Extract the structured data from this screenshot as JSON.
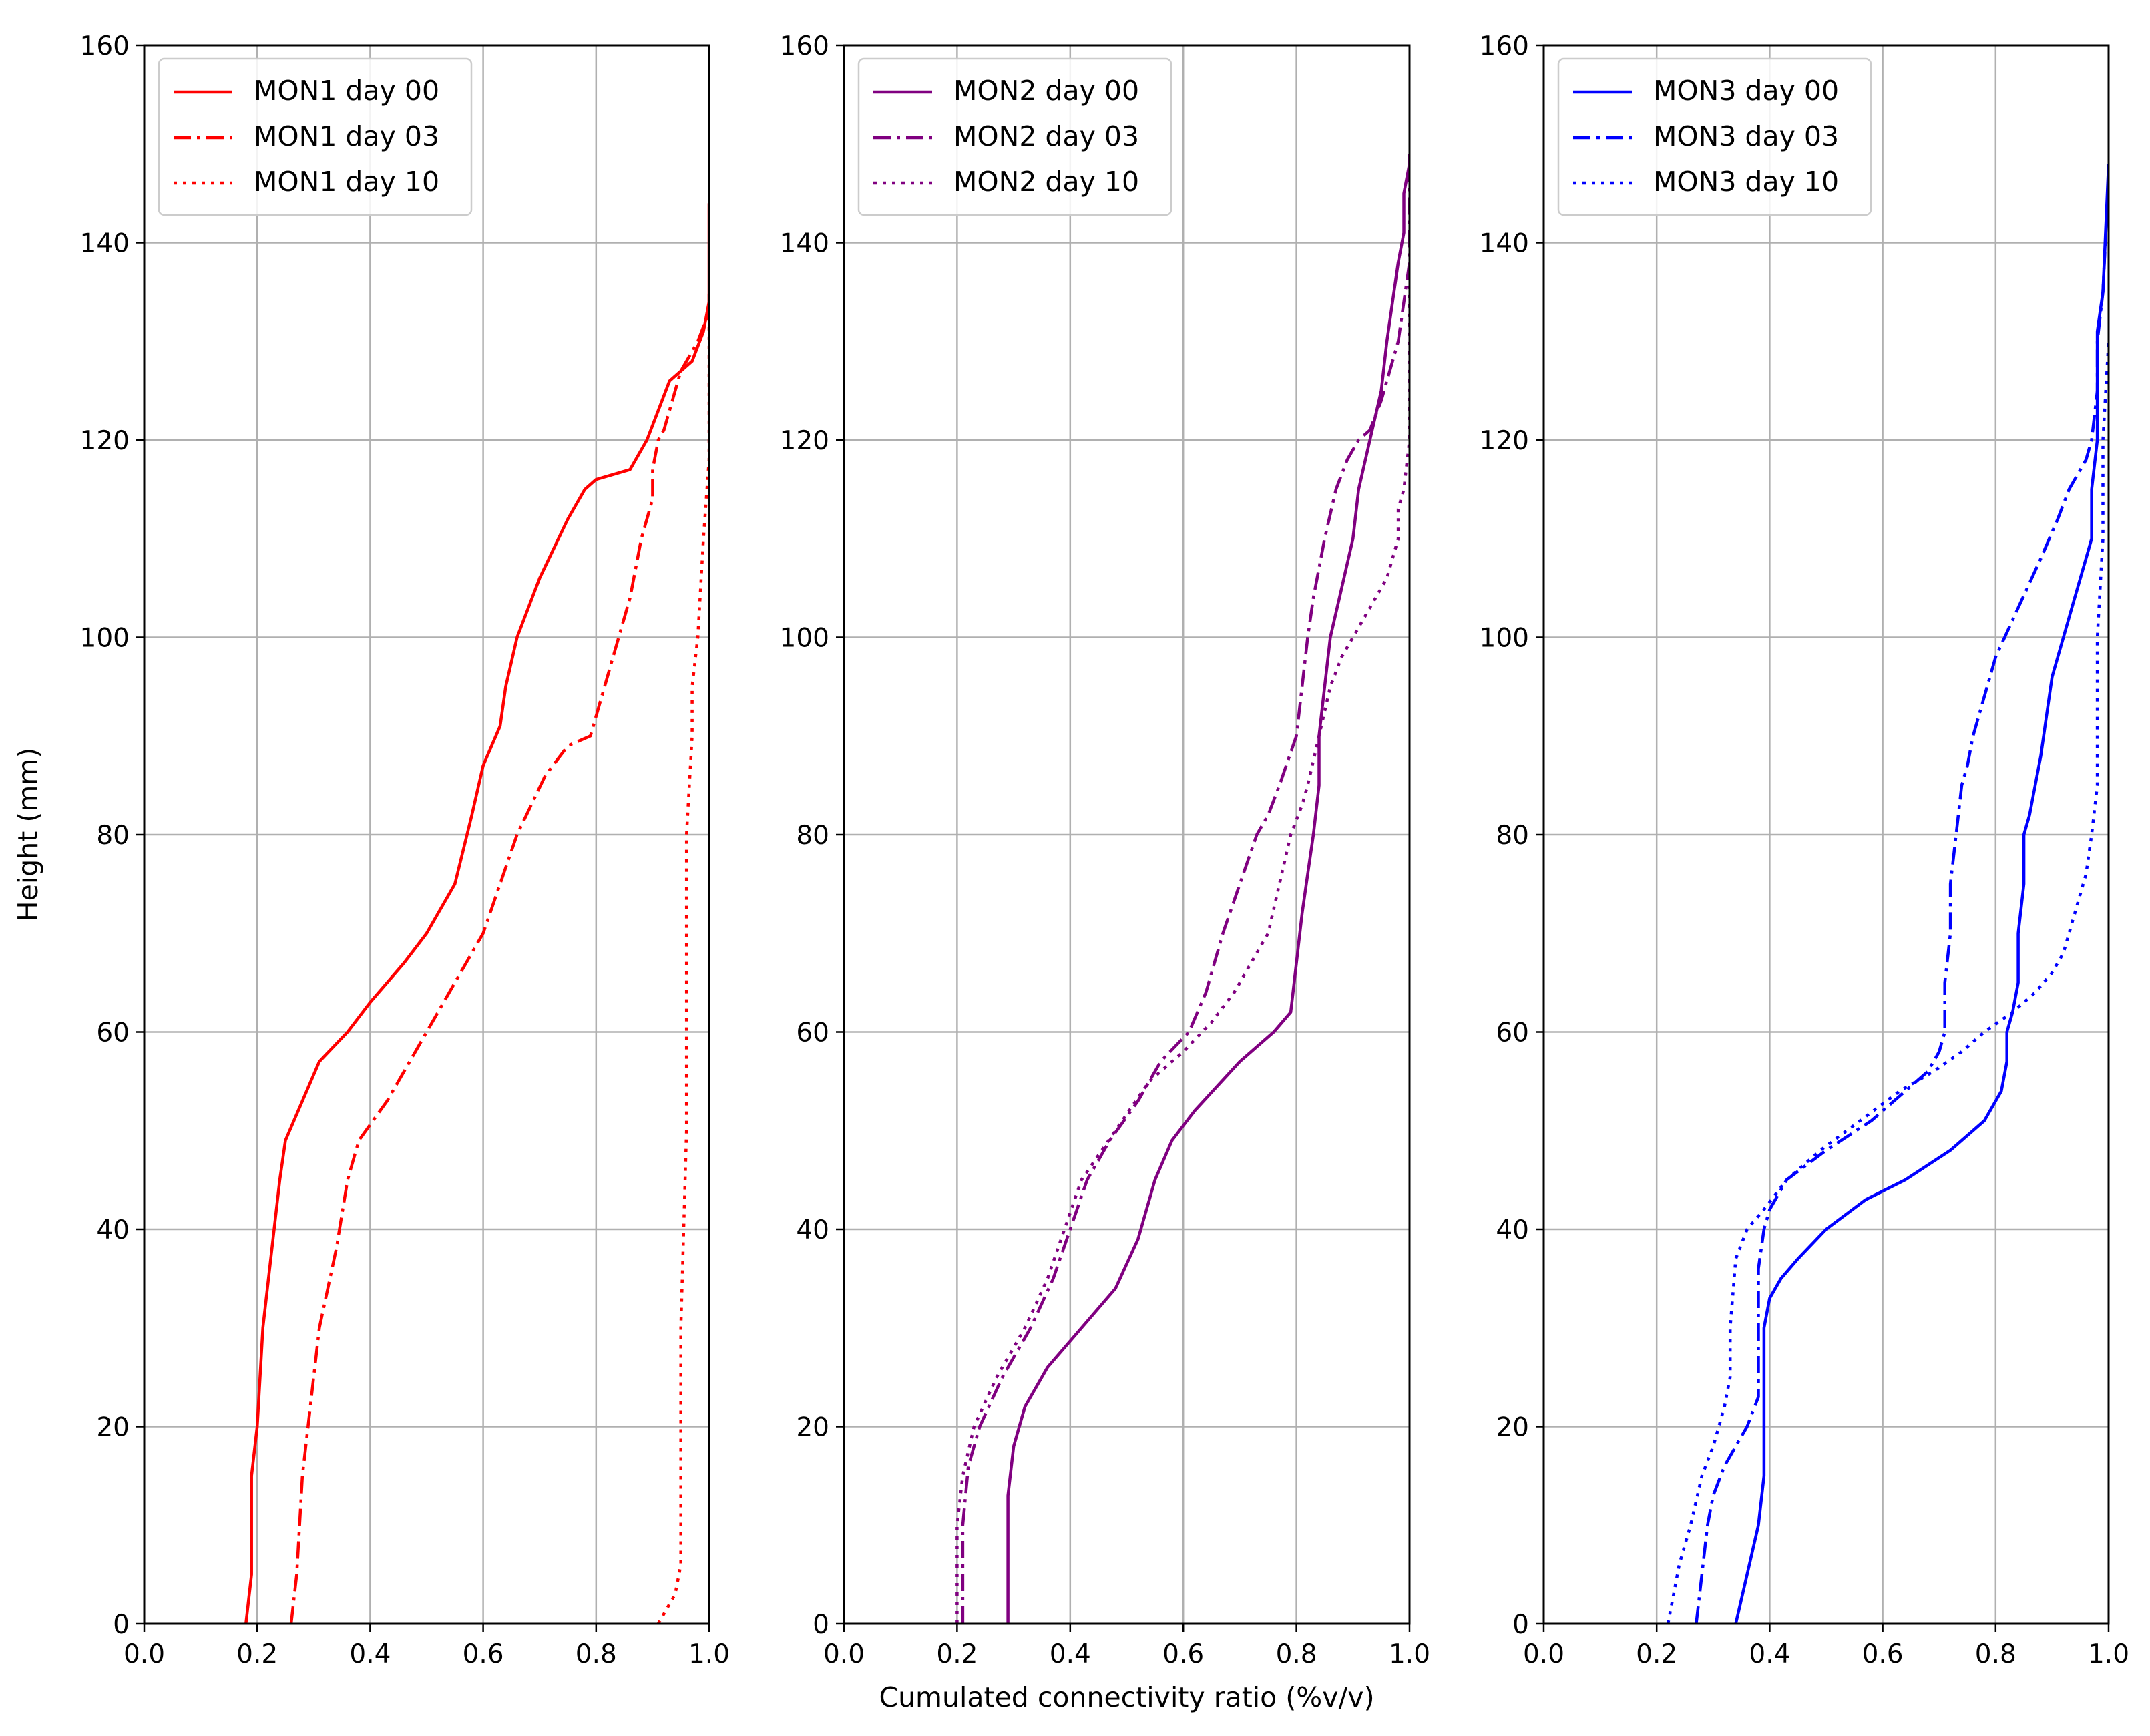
{
  "chart_data": [
    {
      "type": "line",
      "panel": "MON1",
      "xlabel": "",
      "ylabel": "Height (mm)",
      "xlim": [
        0.0,
        1.0
      ],
      "ylim": [
        0,
        160
      ],
      "xticks": [
        "0.0",
        "0.2",
        "0.4",
        "0.6",
        "0.8",
        "1.0"
      ],
      "yticks": [
        "0",
        "20",
        "40",
        "60",
        "80",
        "100",
        "120",
        "140",
        "160"
      ],
      "grid": true,
      "legend_position": "top-left",
      "color": "#ff0000",
      "series": [
        {
          "name": "MON1 day 00",
          "linestyle": "solid",
          "x": [
            0.18,
            0.19,
            0.19,
            0.2,
            0.21,
            0.22,
            0.24,
            0.25,
            0.28,
            0.31,
            0.36,
            0.4,
            0.46,
            0.5,
            0.55,
            0.58,
            0.6,
            0.63,
            0.64,
            0.66,
            0.7,
            0.75,
            0.78,
            0.8,
            0.86,
            0.89,
            0.91,
            0.93,
            0.97,
            0.99,
            1.0,
            1.0
          ],
          "y": [
            0,
            5,
            15,
            20,
            30,
            35,
            45,
            49,
            53,
            57,
            60,
            63,
            67,
            70,
            75,
            82,
            87,
            91,
            95,
            100,
            106,
            112,
            115,
            116,
            117,
            120,
            123,
            126,
            128,
            131,
            134,
            144
          ]
        },
        {
          "name": "MON1 day 03",
          "linestyle": "dashdot",
          "x": [
            0.26,
            0.27,
            0.28,
            0.3,
            0.31,
            0.34,
            0.36,
            0.38,
            0.43,
            0.5,
            0.55,
            0.6,
            0.66,
            0.71,
            0.75,
            0.79,
            0.82,
            0.84,
            0.86,
            0.88,
            0.9,
            0.9,
            0.91,
            0.92,
            0.95,
            0.98,
            1.0,
            1.0
          ],
          "y": [
            0,
            5,
            15,
            25,
            30,
            38,
            45,
            49,
            53,
            60,
            65,
            70,
            80,
            86,
            89,
            90,
            96,
            100,
            104,
            110,
            114,
            117,
            120,
            121,
            127,
            130,
            133,
            135
          ]
        },
        {
          "name": "MON1 day 10",
          "linestyle": "dotted",
          "x": [
            0.91,
            0.94,
            0.95,
            0.95,
            0.95,
            0.96,
            0.96,
            0.96,
            0.97,
            0.97,
            0.98,
            0.99,
            1.0,
            1.0
          ],
          "y": [
            0,
            3,
            6,
            10,
            30,
            50,
            70,
            80,
            90,
            95,
            100,
            110,
            118,
            133
          ]
        }
      ]
    },
    {
      "type": "line",
      "panel": "MON2",
      "xlabel": "Cumulated connectivity ratio  (%v/v)",
      "ylabel": "",
      "xlim": [
        0.0,
        1.0
      ],
      "ylim": [
        0,
        160
      ],
      "xticks": [
        "0.0",
        "0.2",
        "0.4",
        "0.6",
        "0.8",
        "1.0"
      ],
      "yticks": [
        "0",
        "20",
        "40",
        "60",
        "80",
        "100",
        "120",
        "140",
        "160"
      ],
      "grid": true,
      "legend_position": "top-left",
      "color": "#800080",
      "series": [
        {
          "name": "MON2 day 00",
          "linestyle": "solid",
          "x": [
            0.29,
            0.29,
            0.29,
            0.3,
            0.32,
            0.36,
            0.42,
            0.48,
            0.52,
            0.55,
            0.58,
            0.62,
            0.7,
            0.76,
            0.79,
            0.8,
            0.81,
            0.82,
            0.83,
            0.84,
            0.84,
            0.85,
            0.86,
            0.88,
            0.9,
            0.91,
            0.93,
            0.95,
            0.96,
            0.97,
            0.98,
            0.99,
            0.99,
            1.0,
            1.0
          ],
          "y": [
            0,
            5,
            13,
            18,
            22,
            26,
            30,
            34,
            39,
            45,
            49,
            52,
            57,
            60,
            62,
            67,
            72,
            76,
            80,
            85,
            90,
            95,
            100,
            105,
            110,
            115,
            120,
            125,
            130,
            134,
            138,
            141,
            145,
            148,
            149
          ]
        },
        {
          "name": "MON2 day 03",
          "linestyle": "dashdot",
          "x": [
            0.21,
            0.21,
            0.22,
            0.24,
            0.28,
            0.33,
            0.37,
            0.4,
            0.43,
            0.47,
            0.52,
            0.56,
            0.61,
            0.64,
            0.67,
            0.7,
            0.73,
            0.75,
            0.77,
            0.8,
            0.81,
            0.82,
            0.83,
            0.85,
            0.87,
            0.89,
            0.91,
            0.93,
            0.95,
            0.98,
            1.0,
            1.0
          ],
          "y": [
            0,
            10,
            16,
            20,
            25,
            30,
            35,
            40,
            45,
            49,
            53,
            57,
            60,
            64,
            70,
            75,
            80,
            82,
            85,
            90,
            95,
            100,
            104,
            110,
            115,
            118,
            120,
            121,
            124,
            130,
            138,
            149
          ]
        },
        {
          "name": "MON2 day 10",
          "linestyle": "dotted",
          "x": [
            0.2,
            0.2,
            0.21,
            0.23,
            0.27,
            0.32,
            0.36,
            0.39,
            0.42,
            0.48,
            0.54,
            0.6,
            0.65,
            0.69,
            0.73,
            0.75,
            0.77,
            0.79,
            0.81,
            0.82,
            0.84,
            0.86,
            0.88,
            0.9,
            0.93,
            0.96,
            0.98,
            0.98,
            0.99,
            1.0,
            1.0,
            1.0
          ],
          "y": [
            0,
            10,
            15,
            20,
            25,
            30,
            35,
            40,
            45,
            50,
            55,
            58,
            61,
            64,
            68,
            70,
            75,
            80,
            83,
            85,
            90,
            95,
            98,
            100,
            103,
            106,
            110,
            113,
            115,
            120,
            130,
            138
          ]
        }
      ]
    },
    {
      "type": "line",
      "panel": "MON3",
      "xlabel": "",
      "ylabel": "",
      "xlim": [
        0.0,
        1.0
      ],
      "ylim": [
        0,
        160
      ],
      "xticks": [
        "0.0",
        "0.2",
        "0.4",
        "0.6",
        "0.8",
        "1.0"
      ],
      "yticks": [
        "0",
        "20",
        "40",
        "60",
        "80",
        "100",
        "120",
        "140",
        "160"
      ],
      "grid": true,
      "legend_position": "top-left",
      "color": "#0000ff",
      "series": [
        {
          "name": "MON3 day 00",
          "linestyle": "solid",
          "x": [
            0.34,
            0.36,
            0.38,
            0.39,
            0.39,
            0.39,
            0.39,
            0.4,
            0.42,
            0.45,
            0.5,
            0.57,
            0.64,
            0.72,
            0.78,
            0.81,
            0.82,
            0.82,
            0.83,
            0.84,
            0.84,
            0.85,
            0.85,
            0.86,
            0.88,
            0.89,
            0.9,
            0.92,
            0.94,
            0.96,
            0.97,
            0.97,
            0.98,
            0.98,
            0.98,
            0.99,
            1.0
          ],
          "y": [
            0,
            5,
            10,
            15,
            20,
            25,
            30,
            33,
            35,
            37,
            40,
            43,
            45,
            48,
            51,
            54,
            57,
            60,
            62,
            65,
            70,
            75,
            80,
            82,
            88,
            92,
            96,
            100,
            104,
            108,
            110,
            115,
            120,
            125,
            131,
            135,
            148
          ]
        },
        {
          "name": "MON3 day 03",
          "linestyle": "dashdot",
          "x": [
            0.27,
            0.28,
            0.29,
            0.3,
            0.32,
            0.34,
            0.36,
            0.38,
            0.38,
            0.38,
            0.39,
            0.4,
            0.43,
            0.5,
            0.58,
            0.64,
            0.68,
            0.7,
            0.71,
            0.71,
            0.72,
            0.72,
            0.73,
            0.74,
            0.75,
            0.76,
            0.78,
            0.8,
            0.84,
            0.88,
            0.91,
            0.93,
            0.96,
            0.97,
            0.98,
            0.98,
            0.99,
            1.0
          ],
          "y": [
            0,
            5,
            10,
            13,
            16,
            18,
            20,
            23,
            30,
            36,
            40,
            42,
            45,
            48,
            51,
            54,
            56,
            58,
            60,
            65,
            70,
            75,
            80,
            85,
            87,
            90,
            94,
            98,
            103,
            108,
            112,
            115,
            118,
            120,
            125,
            130,
            135,
            147
          ]
        },
        {
          "name": "MON3 day 10",
          "linestyle": "dotted",
          "x": [
            0.22,
            0.23,
            0.24,
            0.26,
            0.28,
            0.3,
            0.32,
            0.33,
            0.33,
            0.34,
            0.36,
            0.39,
            0.43,
            0.49,
            0.56,
            0.63,
            0.69,
            0.74,
            0.78,
            0.83,
            0.87,
            0.9,
            0.92,
            0.94,
            0.96,
            0.97,
            0.98,
            0.98,
            0.98,
            0.99,
            0.99,
            0.99,
            1.0
          ],
          "y": [
            0,
            3,
            6,
            10,
            15,
            18,
            22,
            25,
            30,
            37,
            40,
            42,
            45,
            48,
            51,
            54,
            56,
            58,
            60,
            62,
            64,
            66,
            68,
            72,
            76,
            80,
            85,
            90,
            100,
            110,
            115,
            120,
            130
          ]
        }
      ]
    }
  ]
}
